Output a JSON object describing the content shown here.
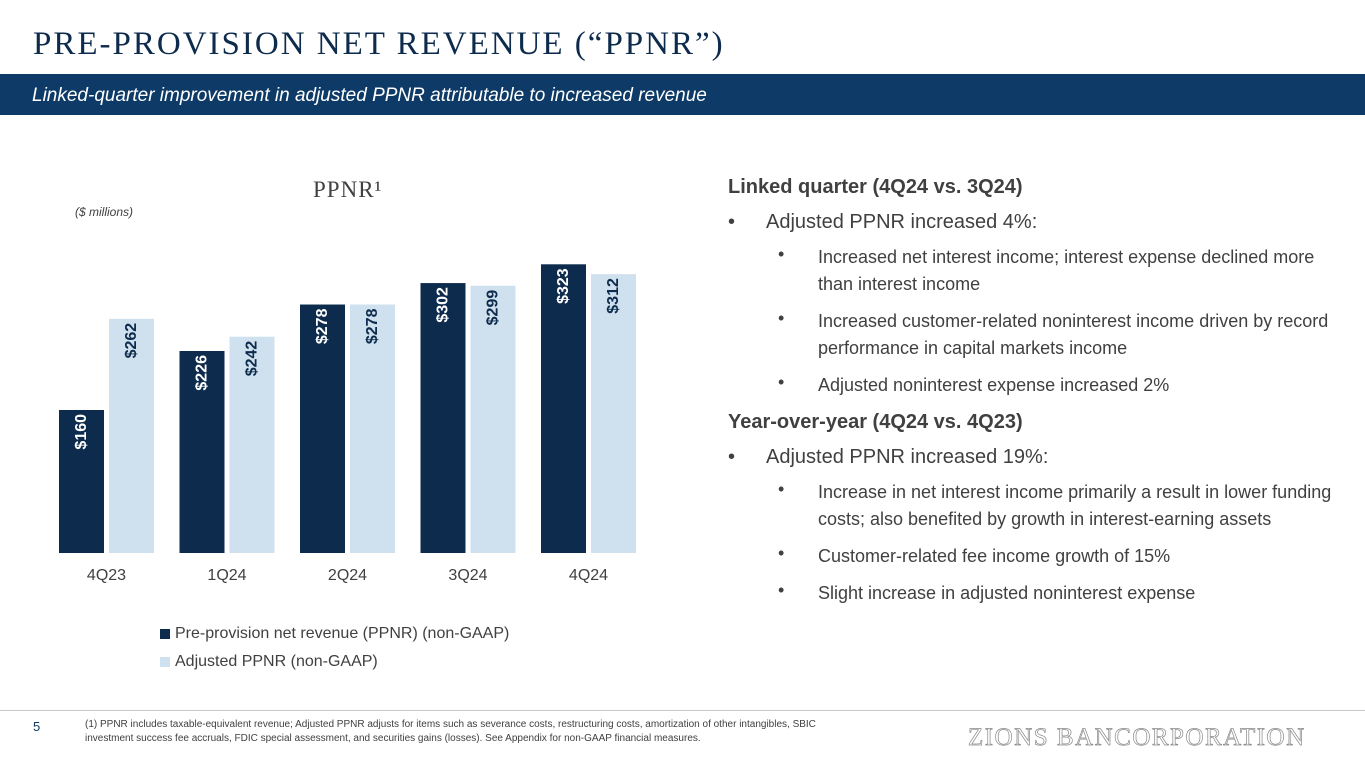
{
  "header": {
    "title": "PRE-PROVISION NET REVENUE (“PPNR”)",
    "subtitle": "Linked-quarter improvement in adjusted PPNR attributable to increased revenue"
  },
  "chart_data": {
    "type": "bar",
    "title": "PPNR¹",
    "units_note": "($ millions)",
    "categories": [
      "4Q23",
      "1Q24",
      "2Q24",
      "3Q24",
      "4Q24"
    ],
    "series": [
      {
        "name": "Pre-provision net revenue (PPNR) (non-GAAP)",
        "values": [
          160,
          226,
          278,
          302,
          323
        ],
        "labels": [
          "$160",
          "$226",
          "$278",
          "$302",
          "$323"
        ],
        "color": "#0d2b4c",
        "label_color": "#ffffff"
      },
      {
        "name": "Adjusted PPNR (non-GAAP)",
        "values": [
          262,
          242,
          278,
          299,
          312
        ],
        "labels": [
          "$262",
          "$242",
          "$278",
          "$299",
          "$312"
        ],
        "color": "#cfe0ee",
        "label_color": "#0d2b4c"
      }
    ],
    "ylim": [
      0,
      340
    ],
    "grid": false,
    "legend": "bottom"
  },
  "commentary": {
    "lq_heading": "Linked quarter (4Q24 vs. 3Q24)",
    "lq_bullet": "Adjusted PPNR increased 4%:",
    "lq_sub": [
      "Increased net interest income; interest expense declined more than interest income",
      "Increased customer-related noninterest income driven by record performance in capital markets income",
      "Adjusted noninterest expense increased 2%"
    ],
    "yoy_heading": "Year-over-year (4Q24 vs. 4Q23)",
    "yoy_bullet": "Adjusted PPNR increased 19%:",
    "yoy_sub": [
      "Increase in net interest income primarily a result in lower funding costs; also benefited by growth in interest-earning assets",
      "Customer-related fee income growth of 15%",
      "Slight increase in adjusted noninterest expense"
    ],
    "bullet_char": "•"
  },
  "footer": {
    "page_number": "5",
    "footnote": "(1) PPNR includes taxable-equivalent revenue; Adjusted PPNR adjusts for items such as severance costs, restructuring costs, amortization of other intangibles, SBIC investment success fee accruals,  FDIC special assessment, and securities gains (losses). See Appendix for non-GAAP financial measures.",
    "logo": "ZIONS BANCORPORATION"
  }
}
